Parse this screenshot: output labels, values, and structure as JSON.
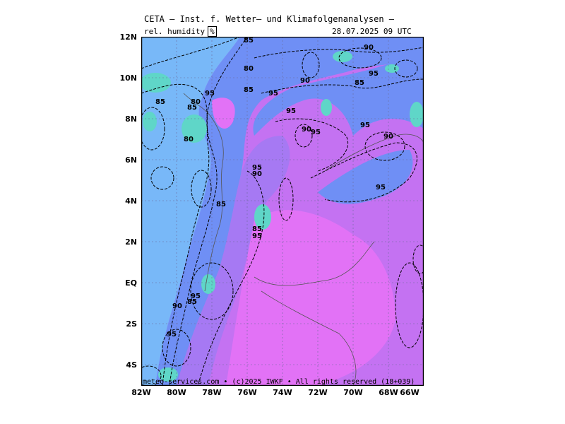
{
  "header": {
    "title": "CETA — Inst. f. Wetter— und Klimafolgenanalysen —",
    "variable": "rel. humidity",
    "unit": "%",
    "datetime": "28.07.2025 09 UTC"
  },
  "footer": {
    "credit": "meteo-services.com • (c)2025 IWKF • All rights reserved (18+039)"
  },
  "axes": {
    "lat_ticks": [
      "12N",
      "10N",
      "8N",
      "6N",
      "4N",
      "2N",
      "EQ",
      "2S",
      "4S"
    ],
    "lon_ticks": [
      "82W",
      "80W",
      "78W",
      "76W",
      "74W",
      "72W",
      "70W",
      "68W",
      "66W"
    ]
  },
  "contour_labels": [
    "85",
    "80",
    "85",
    "95",
    "90",
    "95",
    "85",
    "85",
    "80",
    "95",
    "80",
    "90",
    "95",
    "85",
    "95",
    "95",
    "95",
    "90",
    "95",
    "85",
    "95",
    "85",
    "90",
    "90",
    "95",
    "85",
    "90",
    "95"
  ],
  "colors": {
    "h80": "#78b8f8",
    "h85": "#6f8ff5",
    "h90": "#a679f3",
    "h95": "#c472f2",
    "h100": "#e272f6",
    "sea_green": "#5fd6c8"
  }
}
